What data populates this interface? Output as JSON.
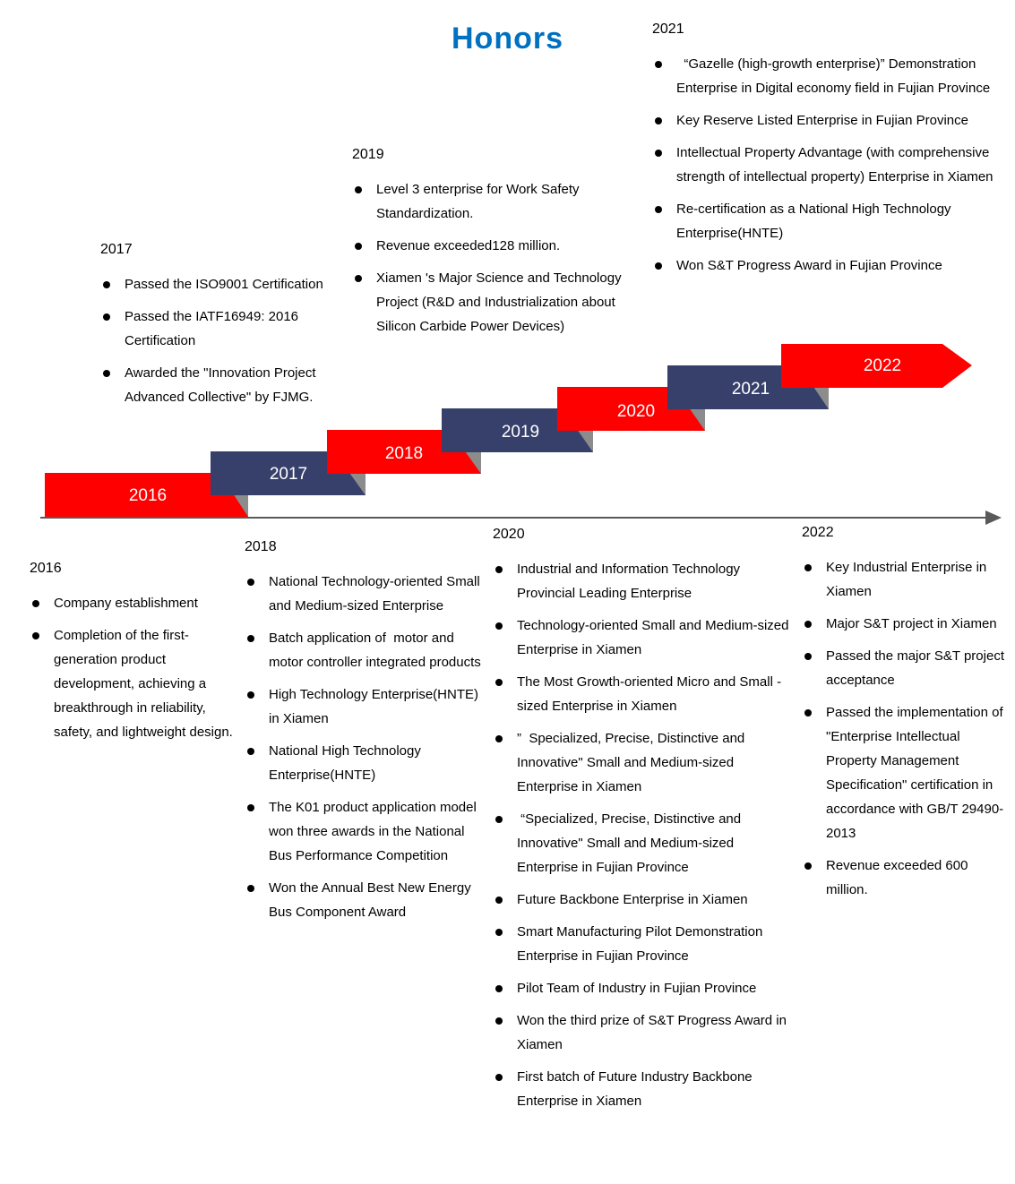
{
  "title": "Honors",
  "colors": {
    "red": "#FF0000",
    "navy": "#37406B",
    "fold_gray": "#8C8C8C",
    "axis_gray": "#595959",
    "title_blue": "#0070C0",
    "banner_text": "#FFFFFF"
  },
  "timeline": {
    "years": [
      {
        "label": "2016",
        "color": "red"
      },
      {
        "label": "2017",
        "color": "navy"
      },
      {
        "label": "2018",
        "color": "red"
      },
      {
        "label": "2019",
        "color": "navy"
      },
      {
        "label": "2020",
        "color": "red"
      },
      {
        "label": "2021",
        "color": "navy"
      },
      {
        "label": "2022",
        "color": "red"
      }
    ]
  },
  "top_sections": [
    {
      "year": "2017",
      "items": [
        "Passed the ISO9001 Certification",
        "Passed the IATF16949: 2016 Certification",
        "Awarded the \"Innovation Project Advanced Collective\" by FJMG."
      ]
    },
    {
      "year": "2019",
      "items": [
        "Level 3 enterprise for Work Safety Standardization.",
        "Revenue exceeded128 million.",
        "Xiamen 's Major Science and Technology Project (R&D and Industrialization about Silicon Carbide Power Devices)"
      ]
    },
    {
      "year": "2021",
      "items": [
        "  “Gazelle (high-growth enterprise)” Demonstration Enterprise in Digital economy field in Fujian Province",
        "Key Reserve Listed Enterprise in Fujian Province",
        "Intellectual Property Advantage (with comprehensive strength of intellectual property) Enterprise in Xiamen",
        "Re-certification as a National High Technology Enterprise(HNTE)",
        "Won S&T Progress Award in Fujian Province"
      ]
    }
  ],
  "bottom_sections": [
    {
      "year": "2016",
      "items": [
        "Company establishment",
        "Completion of the first-generation product development, achieving a breakthrough in reliability, safety, and lightweight design."
      ]
    },
    {
      "year": "2018",
      "items": [
        "National Technology-oriented Small and Medium-sized Enterprise",
        "Batch application of  motor and motor controller integrated products",
        "High Technology Enterprise(HNTE) in Xiamen",
        "National High Technology Enterprise(HNTE)",
        "The K01 product application model won three awards in the National Bus Performance Competition",
        "Won the Annual Best New Energy Bus Component Award"
      ]
    },
    {
      "year": "2020",
      "items": [
        "Industrial and Information Technology Provincial Leading Enterprise",
        "Technology-oriented Small and Medium-sized Enterprise in Xiamen",
        "The Most Growth-oriented Micro and Small -sized Enterprise in Xiamen",
        "”  Specialized, Precise, Distinctive and Innovative\" Small and Medium-sized Enterprise in Xiamen",
        " “Specialized, Precise, Distinctive and Innovative\" Small and Medium-sized Enterprise in Fujian Province",
        "Future Backbone Enterprise in Xiamen",
        "Smart Manufacturing Pilot Demonstration Enterprise in Fujian Province",
        "Pilot Team of Industry in Fujian Province",
        "Won the third prize of S&T Progress Award in Xiamen",
        "First batch of Future Industry Backbone Enterprise in Xiamen"
      ]
    },
    {
      "year": "2022",
      "items": [
        "Key Industrial Enterprise in Xiamen",
        "Major S&T project in Xiamen",
        "Passed the major S&T project acceptance",
        "Passed the implementation of \"Enterprise Intellectual Property Management Specification\" certification in accordance with GB/T 29490-2013",
        "Revenue exceeded 600 million."
      ]
    }
  ]
}
